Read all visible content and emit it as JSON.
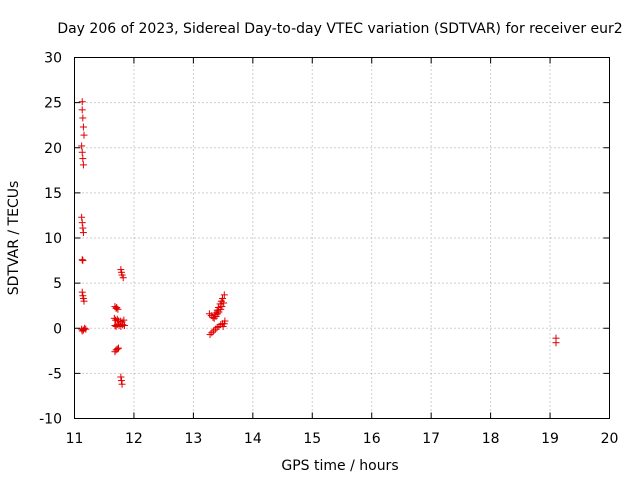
{
  "chart_data": {
    "type": "scatter",
    "title": "Day 206 of 2023, Sidereal Day-to-day VTEC variation (SDTVAR) for receiver eur2",
    "xlabel": "GPS time / hours",
    "ylabel": "SDTVAR / TECUs",
    "xlim": [
      11,
      20
    ],
    "ylim": [
      -10,
      30
    ],
    "xticks": [
      11,
      12,
      13,
      14,
      15,
      16,
      17,
      18,
      19,
      20
    ],
    "yticks": [
      -10,
      -5,
      0,
      5,
      10,
      15,
      20,
      25,
      30
    ],
    "grid": true,
    "marker": "+",
    "color": "#e00000",
    "series": [
      {
        "name": "eur2",
        "points": [
          [
            11.13,
            25.1
          ],
          [
            11.13,
            24.2
          ],
          [
            11.14,
            23.3
          ],
          [
            11.15,
            22.3
          ],
          [
            11.16,
            21.4
          ],
          [
            11.12,
            20.2
          ],
          [
            11.13,
            19.5
          ],
          [
            11.14,
            18.8
          ],
          [
            11.15,
            18.1
          ],
          [
            11.12,
            12.3
          ],
          [
            11.13,
            11.7
          ],
          [
            11.14,
            11.1
          ],
          [
            11.15,
            10.6
          ],
          [
            11.13,
            7.6
          ],
          [
            11.14,
            7.5
          ],
          [
            11.13,
            4.0
          ],
          [
            11.14,
            3.6
          ],
          [
            11.15,
            3.3
          ],
          [
            11.16,
            3.0
          ],
          [
            11.12,
            -0.1
          ],
          [
            11.13,
            -0.3
          ],
          [
            11.15,
            -0.2
          ],
          [
            11.17,
            0.0
          ],
          [
            11.19,
            -0.1
          ],
          [
            11.78,
            6.5
          ],
          [
            11.79,
            6.2
          ],
          [
            11.8,
            5.9
          ],
          [
            11.82,
            5.6
          ],
          [
            11.68,
            2.4
          ],
          [
            11.7,
            2.2
          ],
          [
            11.71,
            2.3
          ],
          [
            11.73,
            2.1
          ],
          [
            11.67,
            1.1
          ],
          [
            11.69,
            0.9
          ],
          [
            11.72,
            1.0
          ],
          [
            11.74,
            0.8
          ],
          [
            11.77,
            0.8
          ],
          [
            11.8,
            0.7
          ],
          [
            11.83,
            0.9
          ],
          [
            11.68,
            0.3
          ],
          [
            11.7,
            0.2
          ],
          [
            11.72,
            0.4
          ],
          [
            11.75,
            0.3
          ],
          [
            11.78,
            0.2
          ],
          [
            11.81,
            0.4
          ],
          [
            11.84,
            0.3
          ],
          [
            11.68,
            -2.6
          ],
          [
            11.7,
            -2.4
          ],
          [
            11.72,
            -2.3
          ],
          [
            11.74,
            -2.2
          ],
          [
            11.78,
            -5.4
          ],
          [
            11.79,
            -5.8
          ],
          [
            11.8,
            -6.2
          ],
          [
            13.27,
            1.6
          ],
          [
            13.3,
            1.4
          ],
          [
            13.33,
            1.2
          ],
          [
            13.36,
            1.5
          ],
          [
            13.38,
            1.7
          ],
          [
            13.4,
            2.0
          ],
          [
            13.42,
            2.3
          ],
          [
            13.45,
            2.7
          ],
          [
            13.47,
            3.0
          ],
          [
            13.49,
            3.3
          ],
          [
            13.52,
            3.7
          ],
          [
            13.35,
            1.1
          ],
          [
            13.38,
            1.3
          ],
          [
            13.41,
            1.6
          ],
          [
            13.43,
            1.8
          ],
          [
            13.46,
            2.1
          ],
          [
            13.48,
            2.4
          ],
          [
            13.51,
            2.8
          ],
          [
            13.28,
            -0.7
          ],
          [
            13.31,
            -0.5
          ],
          [
            13.34,
            -0.3
          ],
          [
            13.37,
            -0.1
          ],
          [
            13.4,
            0.1
          ],
          [
            13.43,
            0.2
          ],
          [
            13.46,
            0.4
          ],
          [
            13.49,
            0.5
          ],
          [
            13.5,
            0.2
          ],
          [
            13.52,
            0.5
          ],
          [
            13.53,
            0.8
          ],
          [
            19.1,
            -1.1
          ],
          [
            19.1,
            -1.6
          ]
        ]
      }
    ]
  }
}
